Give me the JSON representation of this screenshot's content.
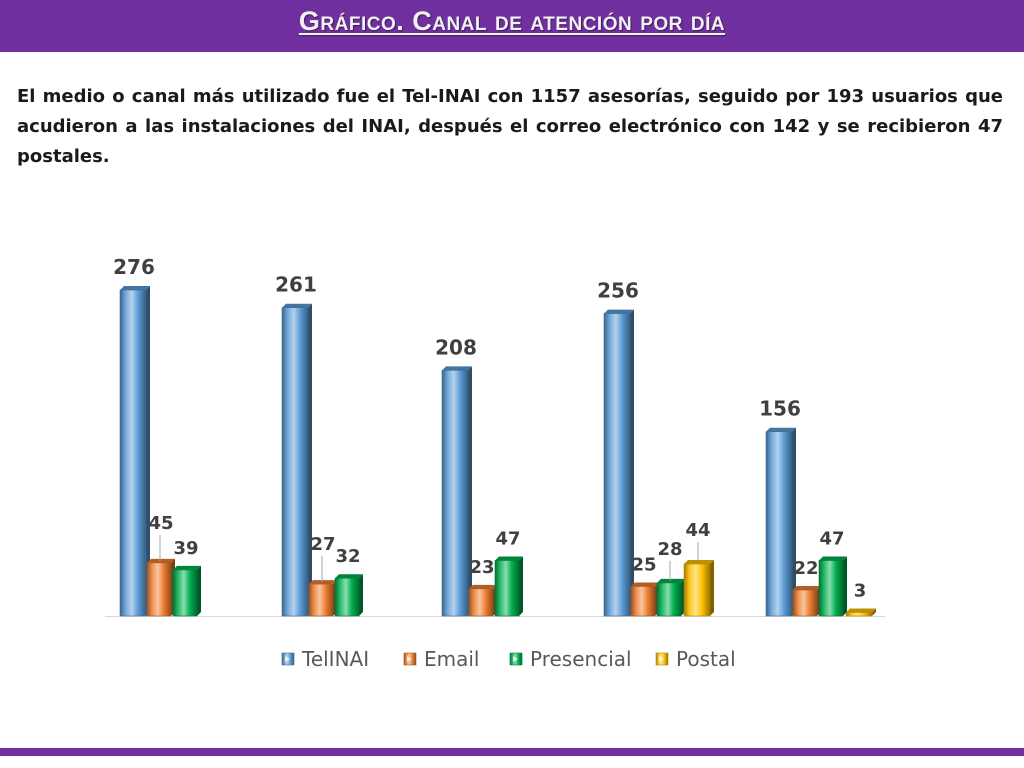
{
  "header": {
    "title": "Gráfico. Canal de atención por día"
  },
  "description": "El medio o canal más utilizado fue el Tel-INAI con 1157 asesorías, seguido por 193 usuarios que acudieron a las instalaciones del INAI, después el correo electrónico con 142 y se recibieron 47 postales.",
  "colors": {
    "brand_purple": "#7030a0",
    "tel_inai": "#5b9bd5",
    "email": "#ed7d31",
    "presencial": "#00b050",
    "postal": "#ffc000"
  },
  "chart_data": {
    "type": "bar",
    "title": "",
    "categories": [
      "",
      "",
      "",
      "",
      ""
    ],
    "series": [
      {
        "name": "TelINAI",
        "values": [
          276,
          261,
          208,
          256,
          156
        ],
        "color": "#5b9bd5"
      },
      {
        "name": "Email",
        "values": [
          45,
          27,
          23,
          25,
          22
        ],
        "color": "#ed7d31"
      },
      {
        "name": "Presencial",
        "values": [
          39,
          32,
          47,
          28,
          47
        ],
        "color": "#00b050"
      },
      {
        "name": "Postal",
        "values": [
          null,
          null,
          null,
          44,
          3
        ],
        "color": "#ffc000"
      }
    ],
    "value_labels": [
      [
        "276",
        "45",
        "39",
        null
      ],
      [
        "261",
        "27",
        "32",
        null
      ],
      [
        "208",
        "23",
        "47",
        null
      ],
      [
        "256",
        "25",
        "28",
        "44"
      ],
      [
        "156",
        "22",
        "47",
        "3"
      ]
    ],
    "ylim": [
      0,
      300
    ],
    "grid": false,
    "legend_position": "bottom"
  }
}
